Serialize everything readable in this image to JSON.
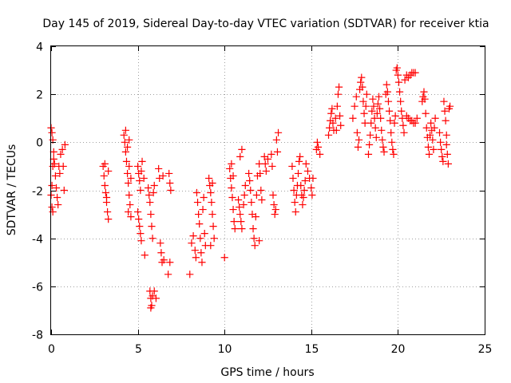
{
  "chart_data": {
    "type": "scatter",
    "title": "Day 145 of 2019, Sidereal Day-to-day VTEC variation (SDTVAR) for receiver ktia",
    "xlabel": "GPS time / hours",
    "ylabel": "SDTVAR / TECUs",
    "xlim": [
      0,
      25
    ],
    "ylim": [
      -8,
      4
    ],
    "xticks": [
      0,
      5,
      10,
      15,
      20,
      25
    ],
    "xtick_labels": [
      "0",
      "5",
      "10",
      "15",
      "20",
      "25"
    ],
    "yticks": [
      -8,
      -6,
      -4,
      -2,
      0,
      2,
      4
    ],
    "ytick_labels": [
      "-8",
      "-6",
      "-4",
      "-2",
      "0",
      "2",
      "4"
    ],
    "grid": true,
    "marker": "+",
    "marker_color": "#ff0000",
    "series": [
      {
        "name": "SDTVAR",
        "points": [
          [
            0.0,
            0.6
          ],
          [
            0.05,
            0.4
          ],
          [
            0.1,
            0.1
          ],
          [
            0.15,
            -0.4
          ],
          [
            0.2,
            -0.9
          ],
          [
            0.25,
            -1.4
          ],
          [
            0.3,
            -1.9
          ],
          [
            0.35,
            -2.3
          ],
          [
            0.4,
            -2.6
          ],
          [
            0.1,
            -2.9
          ],
          [
            0.05,
            -2.7
          ],
          [
            0.0,
            -2.2
          ],
          [
            0.05,
            -1.8
          ],
          [
            0.1,
            -1.0
          ],
          [
            0.15,
            -0.7
          ],
          [
            0.45,
            -1.0
          ],
          [
            0.5,
            -1.3
          ],
          [
            0.55,
            -0.5
          ],
          [
            0.65,
            -0.3
          ],
          [
            0.7,
            -1.0
          ],
          [
            0.75,
            -2.0
          ],
          [
            0.8,
            -0.1
          ],
          [
            3.0,
            -1.0
          ],
          [
            3.05,
            -1.4
          ],
          [
            3.1,
            -1.8
          ],
          [
            3.15,
            -2.1
          ],
          [
            3.2,
            -2.5
          ],
          [
            3.25,
            -2.9
          ],
          [
            3.3,
            -3.2
          ],
          [
            3.1,
            -0.9
          ],
          [
            3.2,
            -2.3
          ],
          [
            3.3,
            -1.2
          ],
          [
            4.2,
            0.3
          ],
          [
            4.25,
            0.0
          ],
          [
            4.3,
            -0.4
          ],
          [
            4.35,
            -0.8
          ],
          [
            4.4,
            -1.3
          ],
          [
            4.45,
            -1.7
          ],
          [
            4.5,
            -2.2
          ],
          [
            4.55,
            -2.6
          ],
          [
            4.6,
            -3.1
          ],
          [
            4.3,
            0.5
          ],
          [
            4.4,
            -0.2
          ],
          [
            4.5,
            -1.0
          ],
          [
            4.45,
            -2.9
          ],
          [
            4.5,
            0.1
          ],
          [
            4.6,
            -1.5
          ],
          [
            5.0,
            -1.0
          ],
          [
            5.05,
            -1.3
          ],
          [
            5.1,
            -1.6
          ],
          [
            5.15,
            -2.0
          ],
          [
            5.2,
            -1.2
          ],
          [
            5.25,
            -0.8
          ],
          [
            5.0,
            -2.9
          ],
          [
            5.05,
            -3.2
          ],
          [
            5.1,
            -3.5
          ],
          [
            5.15,
            -3.8
          ],
          [
            5.2,
            -4.1
          ],
          [
            5.35,
            -1.5
          ],
          [
            5.4,
            -4.7
          ],
          [
            5.6,
            -1.9
          ],
          [
            5.65,
            -2.2
          ],
          [
            5.7,
            -2.5
          ],
          [
            5.75,
            -3.0
          ],
          [
            5.8,
            -3.5
          ],
          [
            5.85,
            -4.0
          ],
          [
            5.9,
            -2.1
          ],
          [
            5.95,
            -1.8
          ],
          [
            5.7,
            -6.2
          ],
          [
            5.75,
            -6.5
          ],
          [
            5.8,
            -6.8
          ],
          [
            5.85,
            -6.4
          ],
          [
            5.75,
            -6.9
          ],
          [
            5.95,
            -6.2
          ],
          [
            6.05,
            -6.5
          ],
          [
            6.2,
            -1.1
          ],
          [
            6.25,
            -1.5
          ],
          [
            6.3,
            -4.2
          ],
          [
            6.35,
            -4.6
          ],
          [
            6.4,
            -5.0
          ],
          [
            6.45,
            -1.4
          ],
          [
            6.5,
            -4.9
          ],
          [
            6.8,
            -1.3
          ],
          [
            6.85,
            -1.7
          ],
          [
            6.9,
            -2.0
          ],
          [
            6.75,
            -5.5
          ],
          [
            6.85,
            -5.0
          ],
          [
            8.0,
            -5.5
          ],
          [
            8.1,
            -4.2
          ],
          [
            8.2,
            -3.9
          ],
          [
            8.3,
            -4.5
          ],
          [
            8.35,
            -4.8
          ],
          [
            8.4,
            -2.1
          ],
          [
            8.45,
            -2.5
          ],
          [
            8.5,
            -3.0
          ],
          [
            8.55,
            -3.4
          ],
          [
            8.6,
            -4.0
          ],
          [
            8.65,
            -4.6
          ],
          [
            8.7,
            -5.0
          ],
          [
            8.75,
            -2.8
          ],
          [
            8.8,
            -2.3
          ],
          [
            8.85,
            -3.8
          ],
          [
            8.9,
            -4.3
          ],
          [
            9.1,
            -1.5
          ],
          [
            9.15,
            -1.8
          ],
          [
            9.2,
            -2.1
          ],
          [
            9.25,
            -2.5
          ],
          [
            9.3,
            -3.0
          ],
          [
            9.35,
            -3.5
          ],
          [
            9.4,
            -4.0
          ],
          [
            9.2,
            -4.3
          ],
          [
            9.3,
            -1.7
          ],
          [
            10.0,
            -4.8
          ],
          [
            10.3,
            -1.1
          ],
          [
            10.35,
            -1.5
          ],
          [
            10.4,
            -1.9
          ],
          [
            10.45,
            -2.3
          ],
          [
            10.5,
            -2.8
          ],
          [
            10.55,
            -3.3
          ],
          [
            10.6,
            -3.6
          ],
          [
            10.4,
            -0.9
          ],
          [
            10.5,
            -1.4
          ],
          [
            10.8,
            -2.4
          ],
          [
            10.85,
            -2.7
          ],
          [
            10.9,
            -3.0
          ],
          [
            10.95,
            -3.3
          ],
          [
            11.0,
            -3.6
          ],
          [
            10.9,
            -0.6
          ],
          [
            11.0,
            -0.3
          ],
          [
            11.1,
            -2.6
          ],
          [
            11.15,
            -2.2
          ],
          [
            11.2,
            -1.8
          ],
          [
            11.4,
            -1.3
          ],
          [
            11.45,
            -1.6
          ],
          [
            11.5,
            -2.0
          ],
          [
            11.55,
            -2.5
          ],
          [
            11.6,
            -3.0
          ],
          [
            11.65,
            -3.6
          ],
          [
            11.7,
            -4.0
          ],
          [
            11.75,
            -4.3
          ],
          [
            11.8,
            -3.1
          ],
          [
            11.85,
            -2.2
          ],
          [
            11.9,
            -1.4
          ],
          [
            12.0,
            -0.9
          ],
          [
            12.05,
            -1.3
          ],
          [
            12.1,
            -2.0
          ],
          [
            12.15,
            -2.4
          ],
          [
            12.0,
            -4.1
          ],
          [
            12.3,
            -0.6
          ],
          [
            12.35,
            -0.9
          ],
          [
            12.4,
            -1.2
          ],
          [
            12.5,
            -0.7
          ],
          [
            12.7,
            -0.5
          ],
          [
            12.75,
            -1.0
          ],
          [
            12.8,
            -2.2
          ],
          [
            12.85,
            -2.6
          ],
          [
            12.9,
            -3.0
          ],
          [
            12.95,
            -2.8
          ],
          [
            13.0,
            0.1
          ],
          [
            13.05,
            -0.4
          ],
          [
            13.1,
            0.4
          ],
          [
            13.9,
            -1.0
          ],
          [
            13.95,
            -1.5
          ],
          [
            14.0,
            -2.0
          ],
          [
            14.05,
            -2.5
          ],
          [
            14.1,
            -2.9
          ],
          [
            14.15,
            -2.2
          ],
          [
            14.2,
            -1.8
          ],
          [
            14.25,
            -1.3
          ],
          [
            14.3,
            -0.8
          ],
          [
            14.35,
            -0.6
          ],
          [
            14.4,
            -1.8
          ],
          [
            14.45,
            -2.2
          ],
          [
            14.5,
            -2.6
          ],
          [
            14.55,
            -2.3
          ],
          [
            14.6,
            -2.0
          ],
          [
            14.65,
            -1.6
          ],
          [
            14.7,
            -0.9
          ],
          [
            14.8,
            -1.2
          ],
          [
            14.9,
            -1.5
          ],
          [
            15.0,
            -1.9
          ],
          [
            15.05,
            -2.2
          ],
          [
            15.1,
            -1.5
          ],
          [
            15.3,
            -0.3
          ],
          [
            15.35,
            0.0
          ],
          [
            15.4,
            -0.2
          ],
          [
            15.5,
            -0.5
          ],
          [
            16.0,
            0.3
          ],
          [
            16.05,
            0.6
          ],
          [
            16.1,
            0.9
          ],
          [
            16.15,
            1.2
          ],
          [
            16.2,
            1.4
          ],
          [
            16.25,
            0.8
          ],
          [
            16.3,
            0.5
          ],
          [
            16.4,
            1.0
          ],
          [
            16.45,
            0.5
          ],
          [
            16.5,
            1.5
          ],
          [
            16.55,
            2.0
          ],
          [
            16.6,
            2.3
          ],
          [
            16.65,
            1.1
          ],
          [
            16.7,
            0.7
          ],
          [
            17.4,
            1.0
          ],
          [
            17.5,
            1.5
          ],
          [
            17.6,
            1.9
          ],
          [
            17.65,
            0.4
          ],
          [
            17.7,
            -0.2
          ],
          [
            17.75,
            0.1
          ],
          [
            17.8,
            2.2
          ],
          [
            17.85,
            2.5
          ],
          [
            17.9,
            2.7
          ],
          [
            17.95,
            2.3
          ],
          [
            18.0,
            1.7
          ],
          [
            18.05,
            1.2
          ],
          [
            18.1,
            0.8
          ],
          [
            18.15,
            1.5
          ],
          [
            18.2,
            2.0
          ],
          [
            18.3,
            -0.5
          ],
          [
            18.35,
            -0.1
          ],
          [
            18.4,
            0.3
          ],
          [
            18.45,
            0.8
          ],
          [
            18.5,
            1.3
          ],
          [
            18.55,
            1.8
          ],
          [
            18.6,
            1.5
          ],
          [
            18.65,
            1.0
          ],
          [
            18.7,
            0.6
          ],
          [
            18.75,
            0.2
          ],
          [
            18.8,
            1.2
          ],
          [
            18.85,
            1.6
          ],
          [
            18.9,
            1.9
          ],
          [
            18.95,
            1.4
          ],
          [
            19.0,
            1.0
          ],
          [
            19.05,
            0.5
          ],
          [
            19.1,
            0.1
          ],
          [
            19.15,
            -0.2
          ],
          [
            19.2,
            -0.4
          ],
          [
            19.3,
            2.0
          ],
          [
            19.35,
            2.4
          ],
          [
            19.4,
            2.1
          ],
          [
            19.45,
            1.7
          ],
          [
            19.5,
            1.3
          ],
          [
            19.55,
            0.9
          ],
          [
            19.6,
            0.4
          ],
          [
            19.65,
            0.0
          ],
          [
            19.7,
            -0.3
          ],
          [
            19.75,
            -0.5
          ],
          [
            19.8,
            0.8
          ],
          [
            19.85,
            1.1
          ],
          [
            19.9,
            3.0
          ],
          [
            19.95,
            3.1
          ],
          [
            20.0,
            2.8
          ],
          [
            20.05,
            2.5
          ],
          [
            20.1,
            2.1
          ],
          [
            20.15,
            1.7
          ],
          [
            20.2,
            1.3
          ],
          [
            20.25,
            1.0
          ],
          [
            20.3,
            0.7
          ],
          [
            20.35,
            0.4
          ],
          [
            20.4,
            2.6
          ],
          [
            20.5,
            2.8
          ],
          [
            20.6,
            2.7
          ],
          [
            20.7,
            2.8
          ],
          [
            20.8,
            2.9
          ],
          [
            20.9,
            2.9
          ],
          [
            21.0,
            2.9
          ],
          [
            20.5,
            1.1
          ],
          [
            20.6,
            1.0
          ],
          [
            20.7,
            0.9
          ],
          [
            20.8,
            0.9
          ],
          [
            20.9,
            0.8
          ],
          [
            21.0,
            0.8
          ],
          [
            21.1,
            1.0
          ],
          [
            21.4,
            1.7
          ],
          [
            21.45,
            1.9
          ],
          [
            21.5,
            2.1
          ],
          [
            21.55,
            1.8
          ],
          [
            21.6,
            1.2
          ],
          [
            21.65,
            0.6
          ],
          [
            21.7,
            0.2
          ],
          [
            21.75,
            -0.2
          ],
          [
            21.8,
            -0.5
          ],
          [
            21.85,
            0.3
          ],
          [
            21.9,
            0.8
          ],
          [
            21.95,
            0.5
          ],
          [
            22.0,
            0.1
          ],
          [
            22.05,
            -0.3
          ],
          [
            22.1,
            0.6
          ],
          [
            22.15,
            1.0
          ],
          [
            22.4,
            0.4
          ],
          [
            22.45,
            0.0
          ],
          [
            22.5,
            -0.3
          ],
          [
            22.55,
            -0.6
          ],
          [
            22.6,
            -0.8
          ],
          [
            22.65,
            1.7
          ],
          [
            22.7,
            1.3
          ],
          [
            22.75,
            0.9
          ],
          [
            22.8,
            -0.1
          ],
          [
            22.85,
            -0.5
          ],
          [
            22.9,
            -0.9
          ],
          [
            22.95,
            1.4
          ],
          [
            23.0,
            1.5
          ],
          [
            22.8,
            0.3
          ]
        ]
      }
    ]
  }
}
